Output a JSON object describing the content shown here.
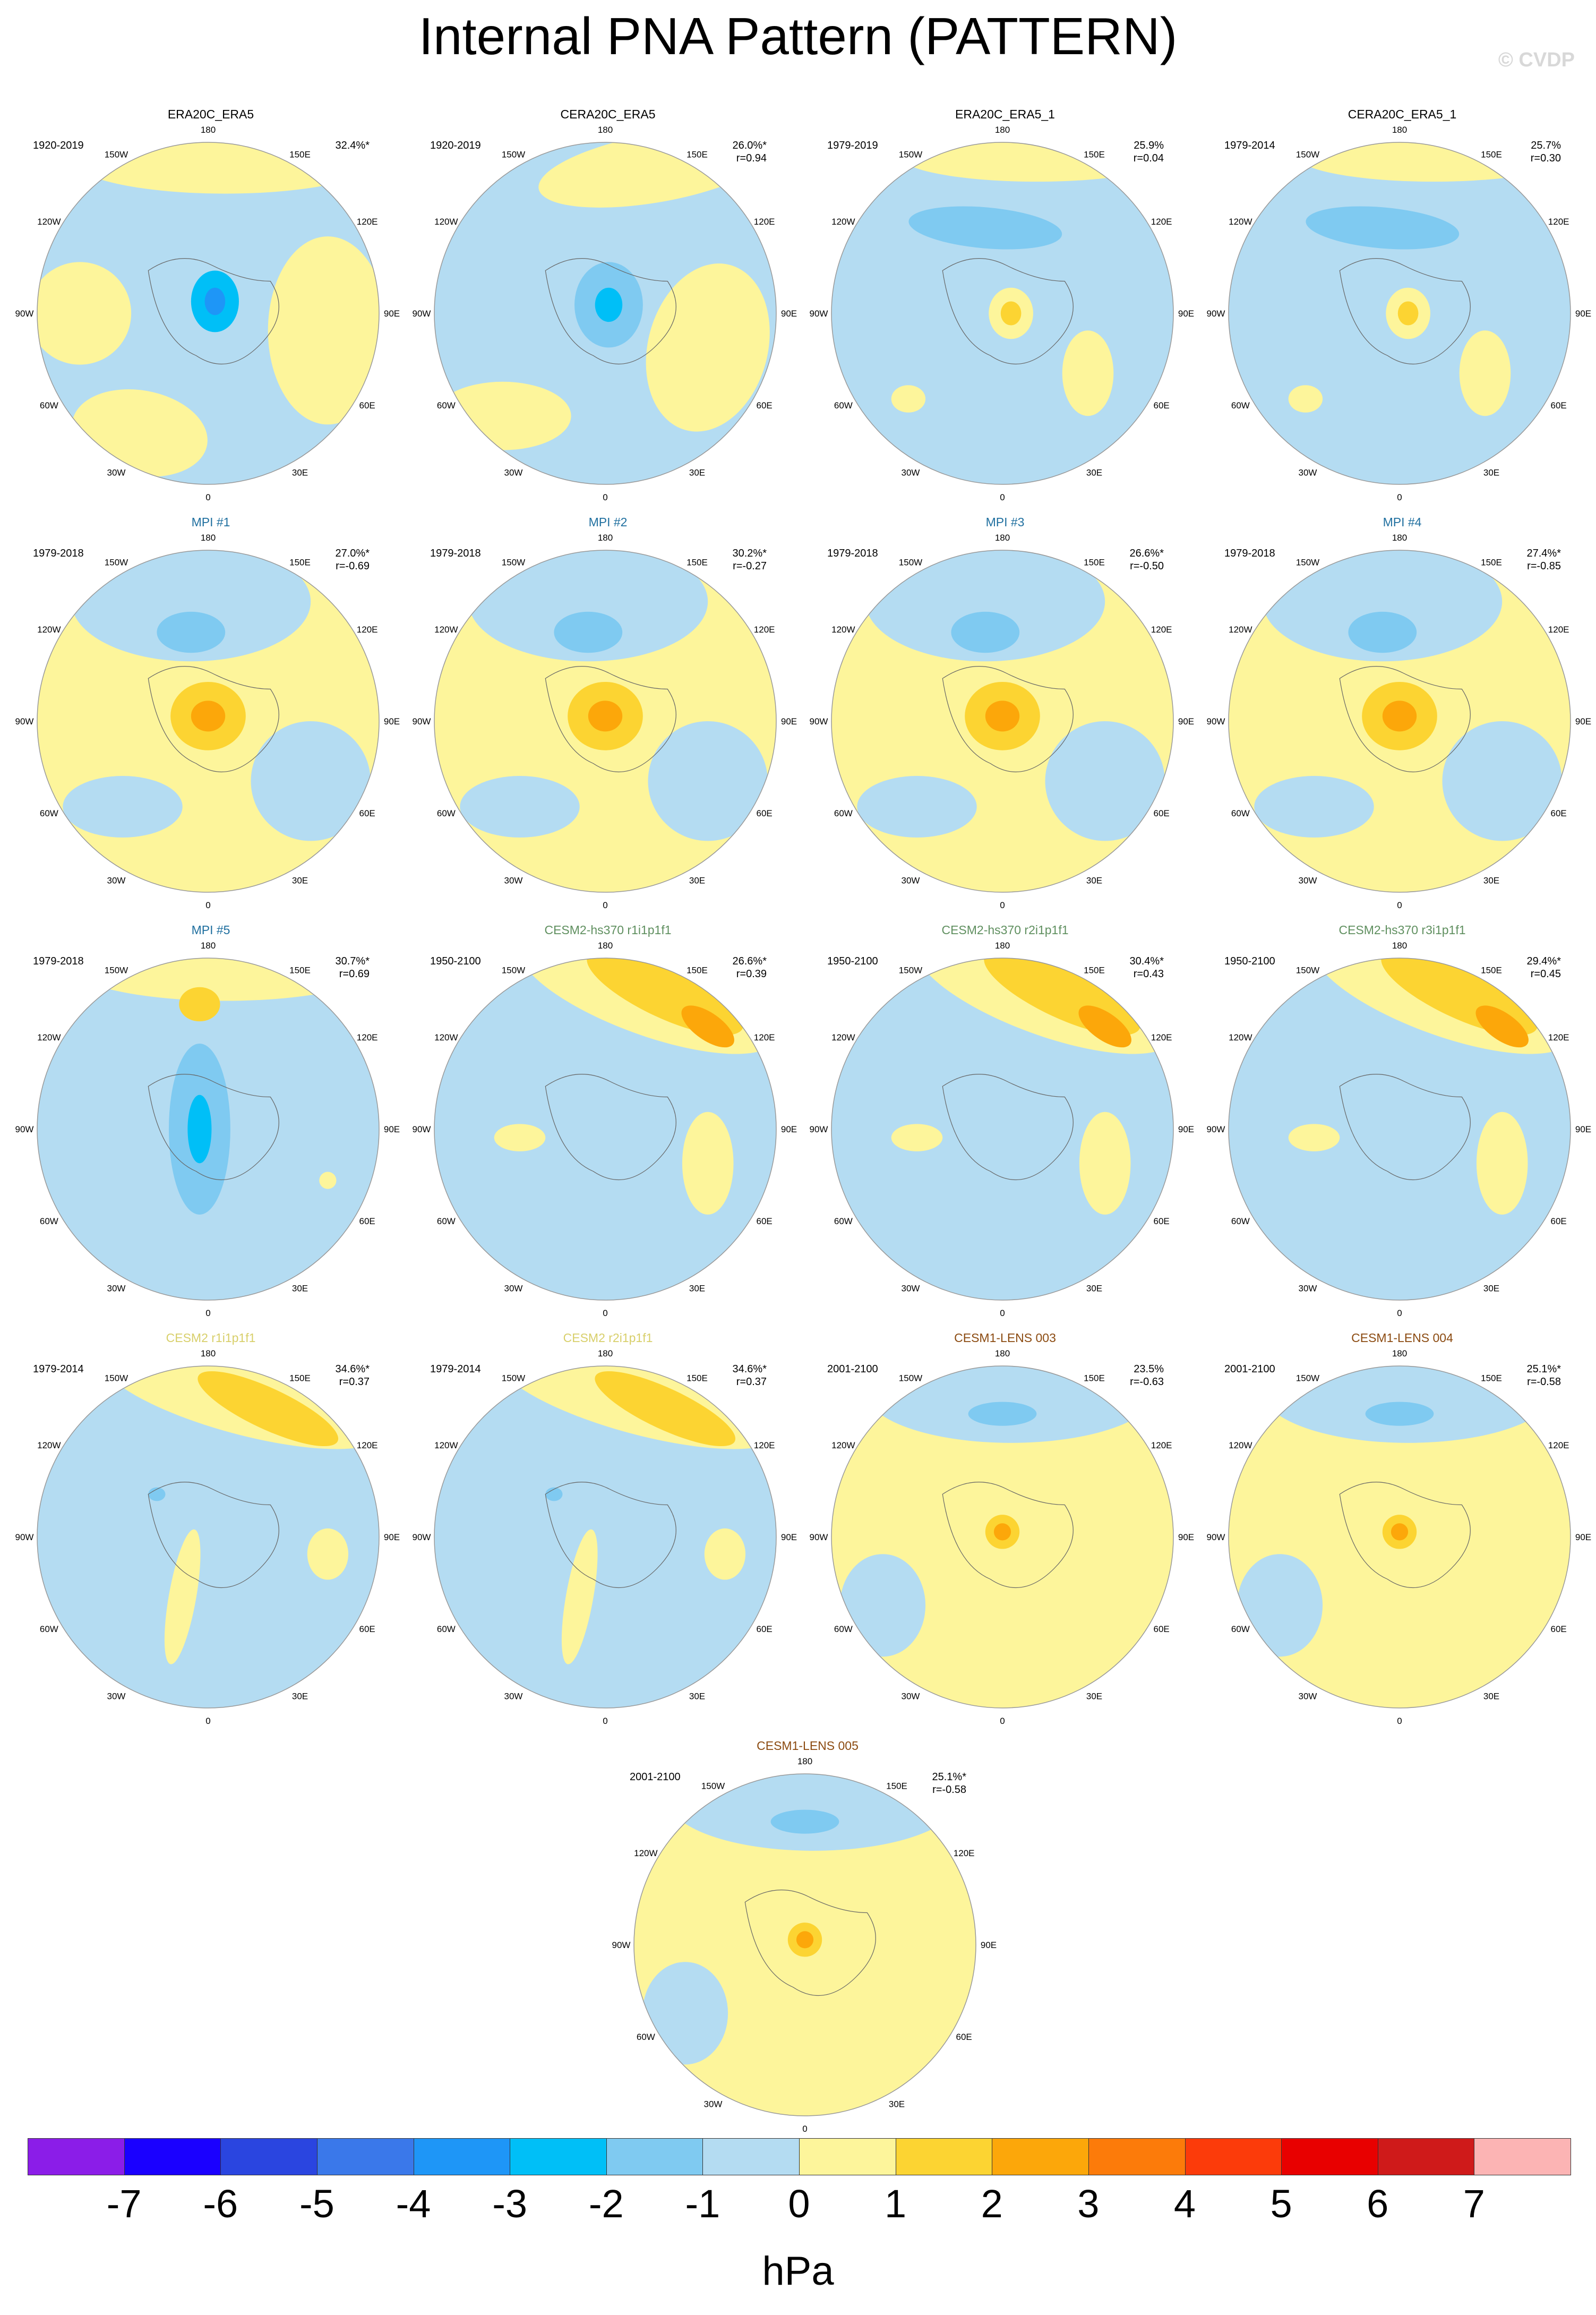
{
  "title": "Internal PNA Pattern (PATTERN)",
  "watermark": "© CVDP",
  "units": "hPa",
  "lon_labels": [
    "180",
    "150E",
    "120E",
    "90E",
    "60E",
    "30E",
    "0",
    "30W",
    "60W",
    "90W",
    "120W",
    "150W"
  ],
  "colorbar": {
    "labels": [
      "-7",
      "-6",
      "-5",
      "-4",
      "-3",
      "-2",
      "-1",
      "0",
      "1",
      "2",
      "3",
      "4",
      "5",
      "6",
      "7"
    ],
    "colors": [
      "#8b1de8",
      "#1a00ff",
      "#2a45e0",
      "#3a78ea",
      "#1e96f7",
      "#00bff7",
      "#7fcaf1",
      "#b4dcf2",
      "#fdf59b",
      "#fcd432",
      "#fca70a",
      "#fc7b0a",
      "#fc3b0a",
      "#e80000",
      "#cf1a1a",
      "#fcb4b4"
    ]
  },
  "panels": [
    {
      "title": "ERA20C_ERA5",
      "title_color": "#000000",
      "period": "1920-2019",
      "pct": "32.4%*",
      "corr": "",
      "pattern": "obs1"
    },
    {
      "title": "CERA20C_ERA5",
      "title_color": "#000000",
      "period": "1920-2019",
      "pct": "26.0%*",
      "corr": "r=0.94",
      "pattern": "obs2"
    },
    {
      "title": "ERA20C_ERA5_1",
      "title_color": "#000000",
      "period": "1979-2019",
      "pct": "25.9%",
      "corr": "r=0.04",
      "pattern": "obs3"
    },
    {
      "title": "CERA20C_ERA5_1",
      "title_color": "#000000",
      "period": "1979-2014",
      "pct": "25.7%",
      "corr": "r=0.30",
      "pattern": "obs3"
    },
    {
      "title": "MPI #1",
      "title_color": "#1f6f9f",
      "period": "1979-2018",
      "pct": "27.0%*",
      "corr": "r=-0.69",
      "pattern": "mpi"
    },
    {
      "title": "MPI #2",
      "title_color": "#1f6f9f",
      "period": "1979-2018",
      "pct": "30.2%*",
      "corr": "r=-0.27",
      "pattern": "mpi"
    },
    {
      "title": "MPI #3",
      "title_color": "#1f6f9f",
      "period": "1979-2018",
      "pct": "26.6%*",
      "corr": "r=-0.50",
      "pattern": "mpi"
    },
    {
      "title": "MPI #4",
      "title_color": "#1f6f9f",
      "period": "1979-2018",
      "pct": "27.4%*",
      "corr": "r=-0.85",
      "pattern": "mpi"
    },
    {
      "title": "MPI #5",
      "title_color": "#1f6f9f",
      "period": "1979-2018",
      "pct": "30.7%*",
      "corr": "r=0.69",
      "pattern": "mpi5"
    },
    {
      "title": "CESM2-hs370 r1i1p1f1",
      "title_color": "#5f8f5f",
      "period": "1950-2100",
      "pct": "26.6%*",
      "corr": "r=0.39",
      "pattern": "cesm2"
    },
    {
      "title": "CESM2-hs370 r2i1p1f1",
      "title_color": "#5f8f5f",
      "period": "1950-2100",
      "pct": "30.4%*",
      "corr": "r=0.43",
      "pattern": "cesm2"
    },
    {
      "title": "CESM2-hs370 r3i1p1f1",
      "title_color": "#5f8f5f",
      "period": "1950-2100",
      "pct": "29.4%*",
      "corr": "r=0.45",
      "pattern": "cesm2"
    },
    {
      "title": "CESM2 r1i1p1f1",
      "title_color": "#d8cf6a",
      "period": "1979-2014",
      "pct": "34.6%*",
      "corr": "r=0.37",
      "pattern": "cesm2b"
    },
    {
      "title": "CESM2 r2i1p1f1",
      "title_color": "#d8cf6a",
      "period": "1979-2014",
      "pct": "34.6%*",
      "corr": "r=0.37",
      "pattern": "cesm2b"
    },
    {
      "title": "CESM1-LENS 003",
      "title_color": "#8b4a10",
      "period": "2001-2100",
      "pct": "23.5%",
      "corr": "r=-0.63",
      "pattern": "lens"
    },
    {
      "title": "CESM1-LENS 004",
      "title_color": "#8b4a10",
      "period": "2001-2100",
      "pct": "25.1%*",
      "corr": "r=-0.58",
      "pattern": "lens"
    },
    {
      "title": "CESM1-LENS 005",
      "title_color": "#8b4a10",
      "period": "2001-2100",
      "pct": "25.1%*",
      "corr": "r=-0.58",
      "pattern": "lens"
    }
  ]
}
